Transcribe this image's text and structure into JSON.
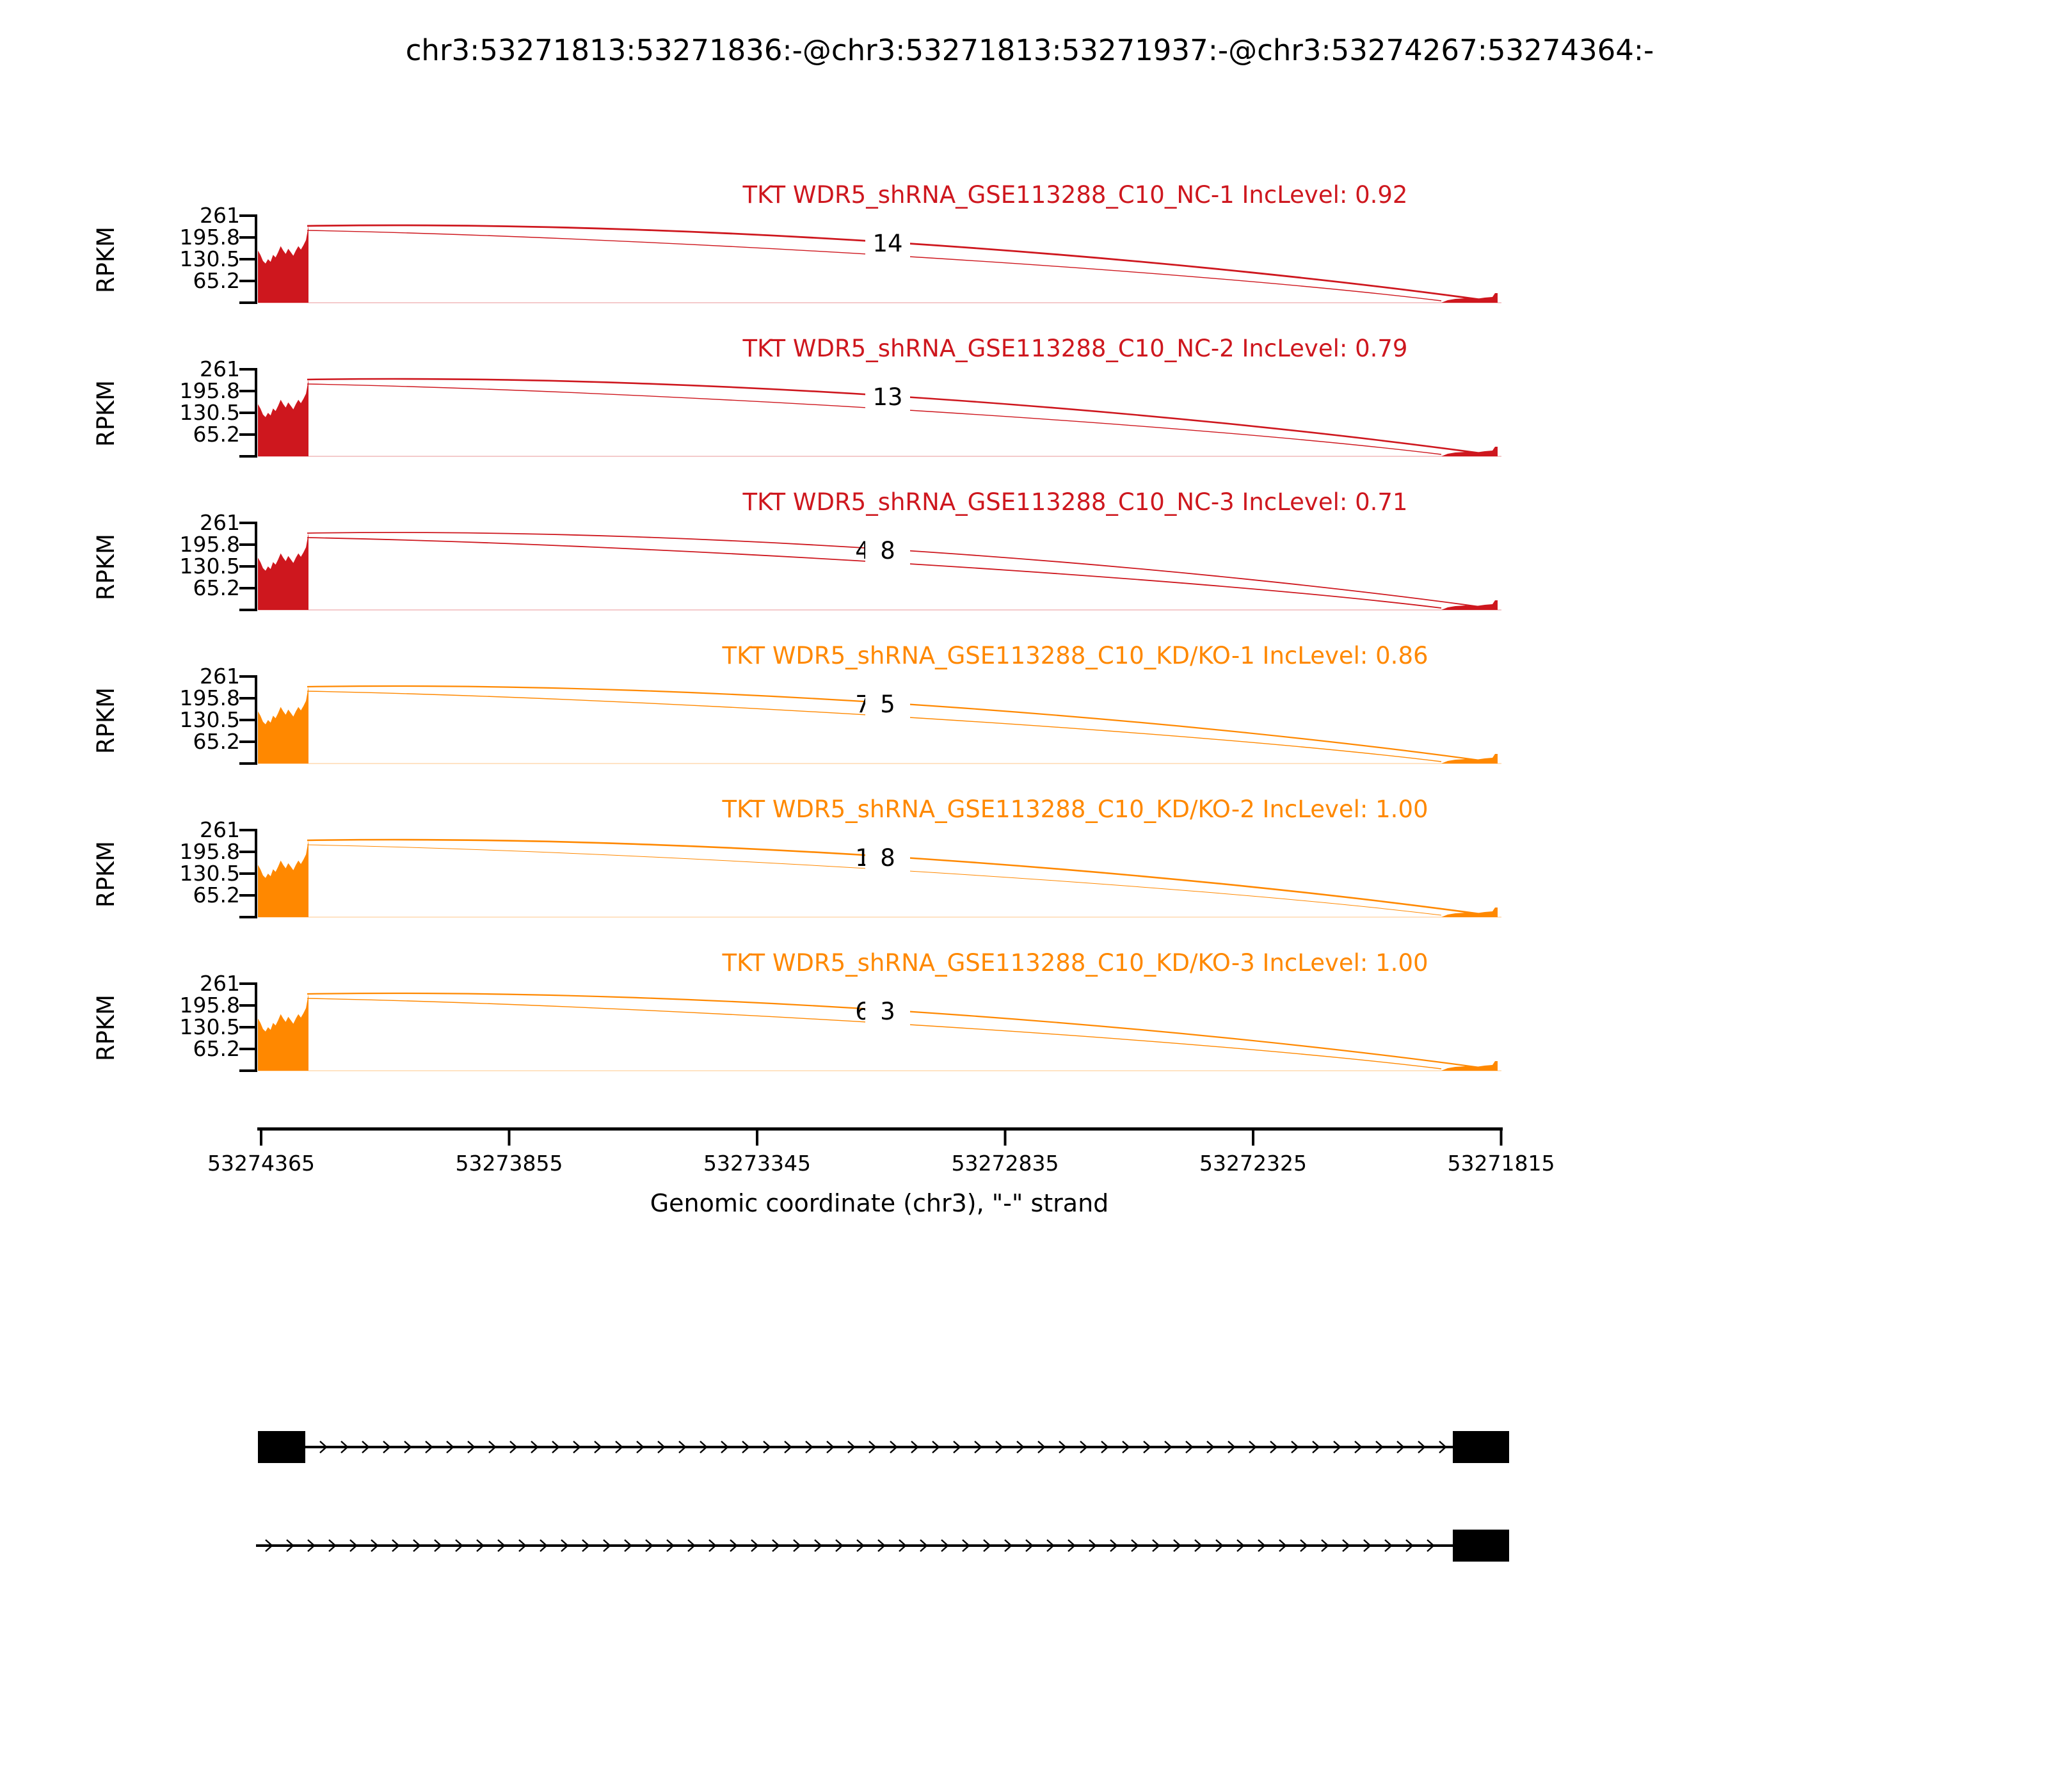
{
  "title": "chr3:53271813:53271836:-@chr3:53271813:53271937:-@chr3:53274267:53274364:-",
  "y_axis": {
    "label": "RPKM",
    "ticks": [
      "261",
      "195.8",
      "130.5",
      "65.2"
    ]
  },
  "x_axis": {
    "label": "Genomic coordinate (chr3), \"-\" strand",
    "ticks": [
      "53274365",
      "53273855",
      "53273345",
      "53272835",
      "53272325",
      "53271815"
    ]
  },
  "colors": {
    "nc_red": "#CE171E",
    "kd_orange": "#FF8800",
    "axis_black": "#000000"
  },
  "tracks": [
    {
      "label": "TKT WDR5_shRNA_GSE113288_C10_NC-1 IncLevel: 0.92",
      "color": "#CE171E",
      "counts": [
        "",
        "14"
      ]
    },
    {
      "label": "TKT WDR5_shRNA_GSE113288_C10_NC-2 IncLevel: 0.79",
      "color": "#CE171E",
      "counts": [
        "",
        "13"
      ]
    },
    {
      "label": "TKT WDR5_shRNA_GSE113288_C10_NC-3 IncLevel: 0.71",
      "color": "#CE171E",
      "counts": [
        "4",
        "8"
      ]
    },
    {
      "label": "TKT WDR5_shRNA_GSE113288_C10_KD/KO-1 IncLevel: 0.86",
      "color": "#FF8800",
      "counts": [
        "7",
        "5"
      ]
    },
    {
      "label": "TKT WDR5_shRNA_GSE113288_C10_KD/KO-2 IncLevel: 1.00",
      "color": "#FF8800",
      "counts": [
        "1",
        "8"
      ]
    },
    {
      "label": "TKT WDR5_shRNA_GSE113288_C10_KD/KO-3 IncLevel: 1.00",
      "color": "#FF8800",
      "counts": [
        "6",
        "3"
      ]
    }
  ],
  "chart_data": {
    "type": "area",
    "subtype": "sashimi-plot",
    "title": "chr3:53271813:53271836:-@chr3:53271813:53271937:-@chr3:53274267:53274364:-",
    "xlabel": "Genomic coordinate (chr3), \"-\" strand",
    "ylabel": "RPKM",
    "x_tick_labels": [
      53274365,
      53273855,
      53273345,
      53272835,
      53272325,
      53271815
    ],
    "y_tick_labels": [
      261,
      195.8,
      130.5,
      65.2
    ],
    "ylim": [
      0,
      261
    ],
    "x_axis_reversed": true,
    "grid": false,
    "series": [
      {
        "name": "TKT WDR5_shRNA_GSE113288_C10_NC-1",
        "group": "NC",
        "inc_level": 0.92,
        "color": "#CE171E",
        "coverage_exon": [
          53274267,
          53274364
        ],
        "coverage_rpkm_range": [
          120,
          235
        ],
        "junction_counts_visible": [
          14
        ]
      },
      {
        "name": "TKT WDR5_shRNA_GSE113288_C10_NC-2",
        "group": "NC",
        "inc_level": 0.79,
        "color": "#CE171E",
        "coverage_exon": [
          53274267,
          53274364
        ],
        "coverage_rpkm_range": [
          120,
          235
        ],
        "junction_counts_visible": [
          13
        ]
      },
      {
        "name": "TKT WDR5_shRNA_GSE113288_C10_NC-3",
        "group": "NC",
        "inc_level": 0.71,
        "color": "#CE171E",
        "coverage_exon": [
          53274267,
          53274364
        ],
        "coverage_rpkm_range": [
          120,
          235
        ],
        "junction_counts_visible": [
          4,
          8
        ]
      },
      {
        "name": "TKT WDR5_shRNA_GSE113288_C10_KD/KO-1",
        "group": "KD/KO",
        "inc_level": 0.86,
        "color": "#FF8800",
        "coverage_exon": [
          53274267,
          53274364
        ],
        "coverage_rpkm_range": [
          120,
          225
        ],
        "junction_counts_visible": [
          7,
          5
        ]
      },
      {
        "name": "TKT WDR5_shRNA_GSE113288_C10_KD/KO-2",
        "group": "KD/KO",
        "inc_level": 1.0,
        "color": "#FF8800",
        "coverage_exon": [
          53274267,
          53274364
        ],
        "coverage_rpkm_range": [
          120,
          225
        ],
        "junction_counts_visible": [
          1,
          8
        ]
      },
      {
        "name": "TKT WDR5_shRNA_GSE113288_C10_KD/KO-3",
        "group": "KD/KO",
        "inc_level": 1.0,
        "color": "#FF8800",
        "coverage_exon": [
          53274267,
          53274364
        ],
        "coverage_rpkm_range": [
          120,
          225
        ],
        "junction_counts_visible": [
          6,
          3
        ]
      }
    ],
    "isoforms": [
      {
        "exons": [
          [
            53274267,
            53274364
          ],
          [
            53271813,
            53271836
          ]
        ],
        "strand": "-",
        "arrows": "rightward"
      },
      {
        "exons": [
          [
            53271813,
            53271937
          ]
        ],
        "strand": "-",
        "arrows": "rightward"
      }
    ]
  }
}
